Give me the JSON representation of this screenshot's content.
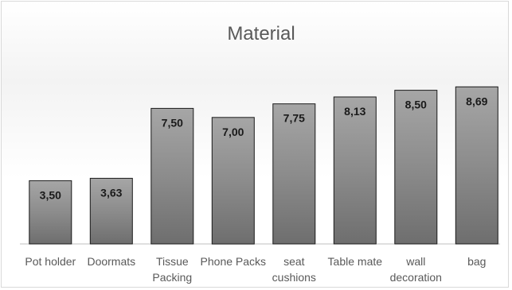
{
  "chart_data": {
    "type": "bar",
    "title": "Material",
    "categories": [
      "Pot holder",
      "Doormats",
      "Tissue Packing",
      "Phone Packs",
      "seat cushions",
      "Table mate",
      "wall decoration",
      "bag"
    ],
    "category_lines": [
      [
        "Pot holder"
      ],
      [
        "Doormats"
      ],
      [
        "Tissue",
        "Packing"
      ],
      [
        "Phone Packs"
      ],
      [
        "seat",
        "cushions"
      ],
      [
        "Table mate"
      ],
      [
        "wall",
        "decoration"
      ],
      [
        "bag"
      ]
    ],
    "values": [
      3.5,
      3.63,
      7.5,
      7.0,
      7.75,
      8.13,
      8.5,
      8.69
    ],
    "value_labels": [
      "3,50",
      "3,63",
      "7,50",
      "7,00",
      "7,75",
      "8,13",
      "8,50",
      "8,69"
    ],
    "xlabel": "",
    "ylabel": "",
    "ylim": [
      0,
      10
    ],
    "grid": false,
    "legend": "none",
    "colors": {
      "bar_top": "#a6a6a6",
      "bar_mid": "#8c8c8c",
      "bar_bottom": "#6e6e6e",
      "bar_stroke": "#1a1a1a",
      "baseline": "#bfbfbf",
      "text": "#595959"
    }
  }
}
